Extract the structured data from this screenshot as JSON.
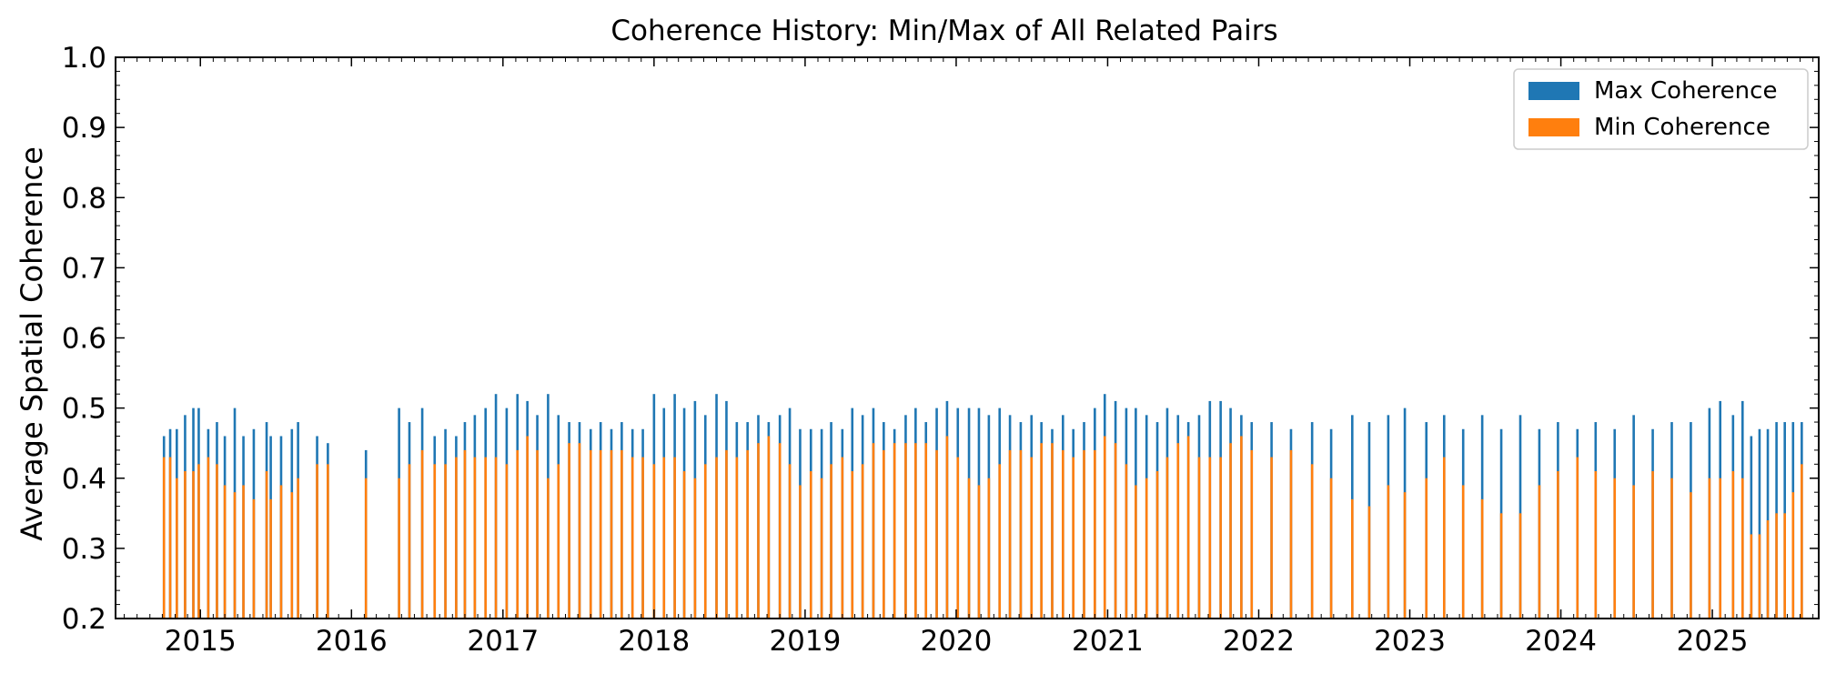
{
  "chart_data": {
    "type": "bar",
    "title": "Coherence History: Min/Max of All Related Pairs",
    "xlabel": "",
    "ylabel": "Average Spatial Coherence",
    "xlim": [
      "2014-06-10",
      "2025-09-15"
    ],
    "ylim": [
      0.2,
      1.0
    ],
    "x_ticks": [
      "2015",
      "2016",
      "2017",
      "2018",
      "2019",
      "2020",
      "2021",
      "2022",
      "2023",
      "2024",
      "2025"
    ],
    "y_ticks": [
      "0.2",
      "0.3",
      "0.4",
      "0.5",
      "0.6",
      "0.7",
      "0.8",
      "0.9",
      "1.0"
    ],
    "grid": false,
    "legend_position": "top-right",
    "colors": {
      "max": "#1f77b4",
      "min": "#ff7f0e"
    },
    "series": [
      {
        "name": "Max Coherence",
        "values": [
          [
            "2014-10-05",
            0.46
          ],
          [
            "2014-10-20",
            0.47
          ],
          [
            "2014-11-05",
            0.47
          ],
          [
            "2014-11-25",
            0.49
          ],
          [
            "2014-12-15",
            0.5
          ],
          [
            "2014-12-28",
            0.5
          ],
          [
            "2015-01-20",
            0.47
          ],
          [
            "2015-02-10",
            0.48
          ],
          [
            "2015-03-01",
            0.46
          ],
          [
            "2015-03-25",
            0.5
          ],
          [
            "2015-04-15",
            0.46
          ],
          [
            "2015-05-10",
            0.47
          ],
          [
            "2015-06-10",
            0.48
          ],
          [
            "2015-06-20",
            0.46
          ],
          [
            "2015-07-15",
            0.46
          ],
          [
            "2015-08-10",
            0.47
          ],
          [
            "2015-08-25",
            0.48
          ],
          [
            "2015-10-10",
            0.46
          ],
          [
            "2015-11-05",
            0.45
          ],
          [
            "2016-02-05",
            0.44
          ],
          [
            "2016-04-25",
            0.5
          ],
          [
            "2016-05-20",
            0.48
          ],
          [
            "2016-06-20",
            0.5
          ],
          [
            "2016-07-20",
            0.46
          ],
          [
            "2016-08-15",
            0.47
          ],
          [
            "2016-09-10",
            0.46
          ],
          [
            "2016-10-01",
            0.48
          ],
          [
            "2016-10-25",
            0.49
          ],
          [
            "2016-11-20",
            0.5
          ],
          [
            "2016-12-15",
            0.52
          ],
          [
            "2017-01-10",
            0.5
          ],
          [
            "2017-02-05",
            0.52
          ],
          [
            "2017-03-01",
            0.51
          ],
          [
            "2017-03-25",
            0.49
          ],
          [
            "2017-04-20",
            0.52
          ],
          [
            "2017-05-15",
            0.49
          ],
          [
            "2017-06-10",
            0.48
          ],
          [
            "2017-07-05",
            0.48
          ],
          [
            "2017-08-01",
            0.47
          ],
          [
            "2017-08-25",
            0.48
          ],
          [
            "2017-09-20",
            0.47
          ],
          [
            "2017-10-15",
            0.48
          ],
          [
            "2017-11-10",
            0.47
          ],
          [
            "2017-12-05",
            0.47
          ],
          [
            "2018-01-01",
            0.52
          ],
          [
            "2018-01-25",
            0.5
          ],
          [
            "2018-02-20",
            0.52
          ],
          [
            "2018-03-15",
            0.5
          ],
          [
            "2018-04-10",
            0.51
          ],
          [
            "2018-05-05",
            0.49
          ],
          [
            "2018-06-01",
            0.52
          ],
          [
            "2018-06-25",
            0.51
          ],
          [
            "2018-07-20",
            0.48
          ],
          [
            "2018-08-15",
            0.48
          ],
          [
            "2018-09-10",
            0.49
          ],
          [
            "2018-10-05",
            0.48
          ],
          [
            "2018-11-01",
            0.49
          ],
          [
            "2018-11-25",
            0.5
          ],
          [
            "2018-12-20",
            0.47
          ],
          [
            "2019-01-15",
            0.47
          ],
          [
            "2019-02-10",
            0.47
          ],
          [
            "2019-03-05",
            0.48
          ],
          [
            "2019-04-01",
            0.47
          ],
          [
            "2019-04-25",
            0.5
          ],
          [
            "2019-05-20",
            0.49
          ],
          [
            "2019-06-15",
            0.5
          ],
          [
            "2019-07-10",
            0.48
          ],
          [
            "2019-08-05",
            0.47
          ],
          [
            "2019-09-01",
            0.49
          ],
          [
            "2019-09-25",
            0.5
          ],
          [
            "2019-10-20",
            0.48
          ],
          [
            "2019-11-15",
            0.5
          ],
          [
            "2019-12-10",
            0.51
          ],
          [
            "2020-01-05",
            0.5
          ],
          [
            "2020-02-01",
            0.5
          ],
          [
            "2020-02-25",
            0.5
          ],
          [
            "2020-03-20",
            0.49
          ],
          [
            "2020-04-15",
            0.5
          ],
          [
            "2020-05-10",
            0.49
          ],
          [
            "2020-06-05",
            0.48
          ],
          [
            "2020-07-01",
            0.49
          ],
          [
            "2020-07-25",
            0.48
          ],
          [
            "2020-08-20",
            0.47
          ],
          [
            "2020-09-15",
            0.49
          ],
          [
            "2020-10-10",
            0.47
          ],
          [
            "2020-11-05",
            0.48
          ],
          [
            "2020-12-01",
            0.5
          ],
          [
            "2020-12-25",
            0.52
          ],
          [
            "2021-01-20",
            0.51
          ],
          [
            "2021-02-15",
            0.5
          ],
          [
            "2021-03-10",
            0.5
          ],
          [
            "2021-04-05",
            0.49
          ],
          [
            "2021-05-01",
            0.48
          ],
          [
            "2021-05-25",
            0.5
          ],
          [
            "2021-06-20",
            0.49
          ],
          [
            "2021-07-15",
            0.48
          ],
          [
            "2021-08-10",
            0.49
          ],
          [
            "2021-09-05",
            0.51
          ],
          [
            "2021-10-01",
            0.51
          ],
          [
            "2021-10-25",
            0.5
          ],
          [
            "2021-11-20",
            0.49
          ],
          [
            "2021-12-15",
            0.48
          ],
          [
            "2022-02-01",
            0.48
          ],
          [
            "2022-03-20",
            0.47
          ],
          [
            "2022-05-10",
            0.48
          ],
          [
            "2022-06-25",
            0.47
          ],
          [
            "2022-08-15",
            0.49
          ],
          [
            "2022-09-25",
            0.48
          ],
          [
            "2022-11-10",
            0.49
          ],
          [
            "2022-12-20",
            0.5
          ],
          [
            "2023-02-10",
            0.48
          ],
          [
            "2023-03-25",
            0.49
          ],
          [
            "2023-05-10",
            0.47
          ],
          [
            "2023-06-25",
            0.49
          ],
          [
            "2023-08-10",
            0.47
          ],
          [
            "2023-09-25",
            0.49
          ],
          [
            "2023-11-10",
            0.47
          ],
          [
            "2023-12-25",
            0.48
          ],
          [
            "2024-02-10",
            0.47
          ],
          [
            "2024-03-25",
            0.48
          ],
          [
            "2024-05-10",
            0.47
          ],
          [
            "2024-06-25",
            0.49
          ],
          [
            "2024-08-10",
            0.47
          ],
          [
            "2024-09-25",
            0.48
          ],
          [
            "2024-11-10",
            0.48
          ],
          [
            "2024-12-25",
            0.5
          ],
          [
            "2025-01-20",
            0.51
          ],
          [
            "2025-02-20",
            0.49
          ],
          [
            "2025-03-15",
            0.51
          ],
          [
            "2025-04-05",
            0.46
          ],
          [
            "2025-04-25",
            0.47
          ],
          [
            "2025-05-15",
            0.47
          ],
          [
            "2025-06-05",
            0.48
          ],
          [
            "2025-06-25",
            0.48
          ],
          [
            "2025-07-15",
            0.48
          ],
          [
            "2025-08-05",
            0.48
          ]
        ]
      },
      {
        "name": "Min Coherence",
        "values": [
          [
            "2014-10-05",
            0.43
          ],
          [
            "2014-10-20",
            0.43
          ],
          [
            "2014-11-05",
            0.4
          ],
          [
            "2014-11-25",
            0.41
          ],
          [
            "2014-12-15",
            0.41
          ],
          [
            "2014-12-28",
            0.42
          ],
          [
            "2015-01-20",
            0.43
          ],
          [
            "2015-02-10",
            0.42
          ],
          [
            "2015-03-01",
            0.39
          ],
          [
            "2015-03-25",
            0.38
          ],
          [
            "2015-04-15",
            0.39
          ],
          [
            "2015-05-10",
            0.37
          ],
          [
            "2015-06-10",
            0.41
          ],
          [
            "2015-06-20",
            0.37
          ],
          [
            "2015-07-15",
            0.39
          ],
          [
            "2015-08-10",
            0.38
          ],
          [
            "2015-08-25",
            0.4
          ],
          [
            "2015-10-10",
            0.42
          ],
          [
            "2015-11-05",
            0.42
          ],
          [
            "2016-02-05",
            0.4
          ],
          [
            "2016-04-25",
            0.4
          ],
          [
            "2016-05-20",
            0.42
          ],
          [
            "2016-06-20",
            0.44
          ],
          [
            "2016-07-20",
            0.42
          ],
          [
            "2016-08-15",
            0.42
          ],
          [
            "2016-09-10",
            0.43
          ],
          [
            "2016-10-01",
            0.44
          ],
          [
            "2016-10-25",
            0.43
          ],
          [
            "2016-11-20",
            0.43
          ],
          [
            "2016-12-15",
            0.43
          ],
          [
            "2017-01-10",
            0.42
          ],
          [
            "2017-02-05",
            0.44
          ],
          [
            "2017-03-01",
            0.46
          ],
          [
            "2017-03-25",
            0.44
          ],
          [
            "2017-04-20",
            0.4
          ],
          [
            "2017-05-15",
            0.42
          ],
          [
            "2017-06-10",
            0.45
          ],
          [
            "2017-07-05",
            0.45
          ],
          [
            "2017-08-01",
            0.44
          ],
          [
            "2017-08-25",
            0.44
          ],
          [
            "2017-09-20",
            0.44
          ],
          [
            "2017-10-15",
            0.44
          ],
          [
            "2017-11-10",
            0.43
          ],
          [
            "2017-12-05",
            0.43
          ],
          [
            "2018-01-01",
            0.42
          ],
          [
            "2018-01-25",
            0.43
          ],
          [
            "2018-02-20",
            0.43
          ],
          [
            "2018-03-15",
            0.41
          ],
          [
            "2018-04-10",
            0.4
          ],
          [
            "2018-05-05",
            0.42
          ],
          [
            "2018-06-01",
            0.43
          ],
          [
            "2018-06-25",
            0.44
          ],
          [
            "2018-07-20",
            0.43
          ],
          [
            "2018-08-15",
            0.44
          ],
          [
            "2018-09-10",
            0.45
          ],
          [
            "2018-10-05",
            0.46
          ],
          [
            "2018-11-01",
            0.45
          ],
          [
            "2018-11-25",
            0.42
          ],
          [
            "2018-12-20",
            0.39
          ],
          [
            "2019-01-15",
            0.41
          ],
          [
            "2019-02-10",
            0.4
          ],
          [
            "2019-03-05",
            0.42
          ],
          [
            "2019-04-01",
            0.43
          ],
          [
            "2019-04-25",
            0.41
          ],
          [
            "2019-05-20",
            0.42
          ],
          [
            "2019-06-15",
            0.45
          ],
          [
            "2019-07-10",
            0.44
          ],
          [
            "2019-08-05",
            0.45
          ],
          [
            "2019-09-01",
            0.45
          ],
          [
            "2019-09-25",
            0.45
          ],
          [
            "2019-10-20",
            0.45
          ],
          [
            "2019-11-15",
            0.44
          ],
          [
            "2019-12-10",
            0.46
          ],
          [
            "2020-01-05",
            0.43
          ],
          [
            "2020-02-01",
            0.4
          ],
          [
            "2020-02-25",
            0.39
          ],
          [
            "2020-03-20",
            0.4
          ],
          [
            "2020-04-15",
            0.42
          ],
          [
            "2020-05-10",
            0.44
          ],
          [
            "2020-06-05",
            0.44
          ],
          [
            "2020-07-01",
            0.43
          ],
          [
            "2020-07-25",
            0.45
          ],
          [
            "2020-08-20",
            0.45
          ],
          [
            "2020-09-15",
            0.44
          ],
          [
            "2020-10-10",
            0.43
          ],
          [
            "2020-11-05",
            0.44
          ],
          [
            "2020-12-01",
            0.44
          ],
          [
            "2020-12-25",
            0.46
          ],
          [
            "2021-01-20",
            0.45
          ],
          [
            "2021-02-15",
            0.42
          ],
          [
            "2021-03-10",
            0.39
          ],
          [
            "2021-04-05",
            0.4
          ],
          [
            "2021-05-01",
            0.41
          ],
          [
            "2021-05-25",
            0.43
          ],
          [
            "2021-06-20",
            0.45
          ],
          [
            "2021-07-15",
            0.46
          ],
          [
            "2021-08-10",
            0.43
          ],
          [
            "2021-09-05",
            0.43
          ],
          [
            "2021-10-01",
            0.43
          ],
          [
            "2021-10-25",
            0.45
          ],
          [
            "2021-11-20",
            0.46
          ],
          [
            "2021-12-15",
            0.44
          ],
          [
            "2022-02-01",
            0.43
          ],
          [
            "2022-03-20",
            0.44
          ],
          [
            "2022-05-10",
            0.42
          ],
          [
            "2022-06-25",
            0.4
          ],
          [
            "2022-08-15",
            0.37
          ],
          [
            "2022-09-25",
            0.36
          ],
          [
            "2022-11-10",
            0.39
          ],
          [
            "2022-12-20",
            0.38
          ],
          [
            "2023-02-10",
            0.4
          ],
          [
            "2023-03-25",
            0.43
          ],
          [
            "2023-05-10",
            0.39
          ],
          [
            "2023-06-25",
            0.37
          ],
          [
            "2023-08-10",
            0.35
          ],
          [
            "2023-09-25",
            0.35
          ],
          [
            "2023-11-10",
            0.39
          ],
          [
            "2023-12-25",
            0.41
          ],
          [
            "2024-02-10",
            0.43
          ],
          [
            "2024-03-25",
            0.41
          ],
          [
            "2024-05-10",
            0.4
          ],
          [
            "2024-06-25",
            0.39
          ],
          [
            "2024-08-10",
            0.41
          ],
          [
            "2024-09-25",
            0.4
          ],
          [
            "2024-11-10",
            0.38
          ],
          [
            "2024-12-25",
            0.4
          ],
          [
            "2025-01-20",
            0.4
          ],
          [
            "2025-02-20",
            0.41
          ],
          [
            "2025-03-15",
            0.4
          ],
          [
            "2025-04-05",
            0.32
          ],
          [
            "2025-04-25",
            0.32
          ],
          [
            "2025-05-15",
            0.34
          ],
          [
            "2025-06-05",
            0.35
          ],
          [
            "2025-06-25",
            0.35
          ],
          [
            "2025-07-15",
            0.38
          ],
          [
            "2025-08-05",
            0.42
          ]
        ]
      }
    ]
  }
}
